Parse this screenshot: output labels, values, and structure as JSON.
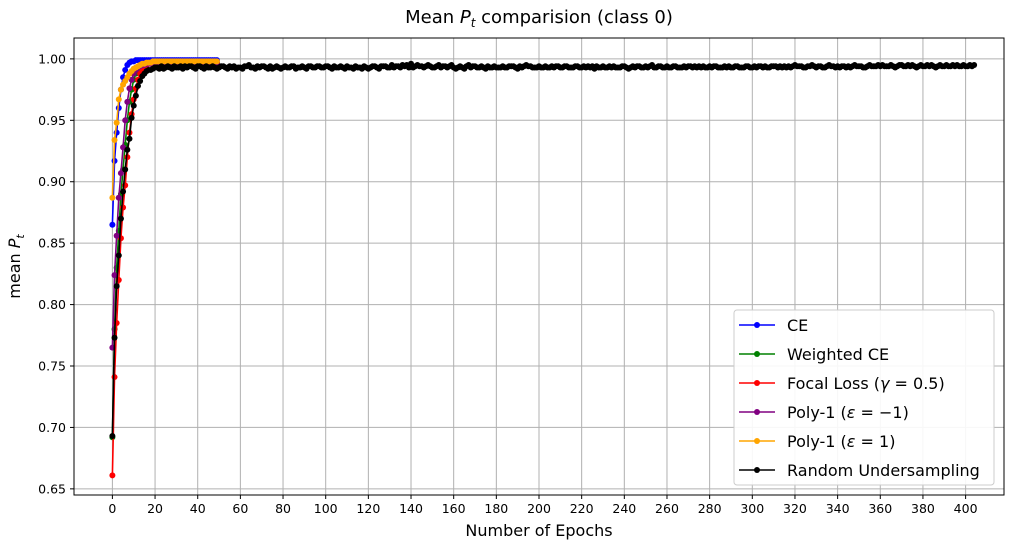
{
  "chart_data": {
    "type": "line",
    "title": "Mean P_t comparision (class 0)",
    "title_parts": {
      "prefix": "Mean ",
      "var": "P",
      "sub": "t",
      "suffix": " comparision (class 0)"
    },
    "xlabel": "Number of Epochs",
    "ylabel": "mean P_t",
    "ylabel_parts": {
      "prefix": "mean ",
      "var": "P",
      "sub": "t"
    },
    "xlim": [
      -18,
      418
    ],
    "ylim": [
      0.645,
      1.017
    ],
    "xticks": [
      0,
      20,
      40,
      60,
      80,
      100,
      120,
      140,
      160,
      180,
      200,
      220,
      240,
      260,
      280,
      300,
      320,
      340,
      360,
      380,
      400
    ],
    "yticks": [
      0.65,
      0.7,
      0.75,
      0.8,
      0.85,
      0.9,
      0.95,
      1.0
    ],
    "ytick_labels": [
      "0.65",
      "0.70",
      "0.75",
      "0.80",
      "0.85",
      "0.90",
      "0.95",
      "1.00"
    ],
    "grid": true,
    "legend_position": "lower-right",
    "series": [
      {
        "name": "CE",
        "color": "#0000ff",
        "label_parts": [
          {
            "t": "CE"
          }
        ],
        "x": [
          0,
          1,
          2,
          3,
          4,
          5,
          6,
          7,
          8,
          9,
          10,
          11,
          12,
          13,
          14,
          15,
          16,
          17,
          18,
          19,
          20,
          21,
          22,
          23,
          24,
          25,
          26,
          27,
          28,
          29,
          30,
          31,
          32,
          33,
          34,
          35,
          36,
          37,
          38,
          39,
          40,
          41,
          42,
          43,
          44,
          45,
          46,
          47,
          48,
          49
        ],
        "values": [
          0.865,
          0.917,
          0.94,
          0.96,
          0.975,
          0.985,
          0.991,
          0.995,
          0.997,
          0.998,
          0.998,
          0.999,
          0.999,
          0.999,
          0.999,
          0.999,
          0.999,
          0.999,
          0.999,
          0.999,
          0.999,
          0.999,
          0.999,
          0.999,
          0.999,
          0.999,
          0.999,
          0.999,
          0.999,
          0.999,
          0.999,
          0.999,
          0.999,
          0.999,
          0.999,
          0.999,
          0.999,
          0.999,
          0.999,
          0.999,
          0.999,
          0.999,
          0.999,
          0.999,
          0.999,
          0.999,
          0.999,
          0.999,
          0.999,
          0.999
        ]
      },
      {
        "name": "Weighted CE",
        "color": "#008000",
        "label_parts": [
          {
            "t": "Weighted CE"
          }
        ],
        "x": [
          0,
          1,
          2,
          3,
          4,
          5,
          6,
          7,
          8,
          9,
          10,
          11,
          12,
          13,
          14,
          15,
          16,
          17,
          18,
          19,
          20,
          21,
          22,
          23,
          24,
          25,
          26,
          27,
          28,
          29,
          30,
          31,
          32,
          33,
          34,
          35,
          36,
          37,
          38,
          39,
          40,
          41,
          42,
          43,
          44,
          45,
          46,
          47,
          48,
          49
        ],
        "values": [
          0.692,
          0.78,
          0.83,
          0.86,
          0.89,
          0.91,
          0.93,
          0.95,
          0.965,
          0.975,
          0.983,
          0.988,
          0.991,
          0.993,
          0.994,
          0.995,
          0.996,
          0.996,
          0.997,
          0.997,
          0.997,
          0.997,
          0.997,
          0.997,
          0.997,
          0.997,
          0.997,
          0.997,
          0.997,
          0.997,
          0.997,
          0.997,
          0.997,
          0.997,
          0.997,
          0.997,
          0.997,
          0.997,
          0.997,
          0.997,
          0.997,
          0.997,
          0.997,
          0.997,
          0.997,
          0.997,
          0.997,
          0.997,
          0.997,
          0.997
        ]
      },
      {
        "name": "Focal Loss (γ = 0.5)",
        "color": "#ff0000",
        "label_parts": [
          {
            "t": "Focal Loss ("
          },
          {
            "t": "γ",
            "i": true
          },
          {
            "t": " = 0.5)"
          }
        ],
        "x": [
          0,
          1,
          2,
          3,
          4,
          5,
          6,
          7,
          8,
          9,
          10,
          11,
          12,
          13,
          14,
          15,
          16,
          17,
          18,
          19,
          20,
          21,
          22,
          23,
          24,
          25,
          26,
          27,
          28,
          29,
          30,
          31,
          32,
          33,
          34,
          35,
          36,
          37,
          38,
          39,
          40,
          41,
          42,
          43,
          44,
          45,
          46,
          47,
          48,
          49
        ],
        "values": [
          0.661,
          0.741,
          0.785,
          0.82,
          0.854,
          0.879,
          0.897,
          0.92,
          0.94,
          0.955,
          0.967,
          0.976,
          0.983,
          0.988,
          0.991,
          0.993,
          0.995,
          0.996,
          0.996,
          0.997,
          0.997,
          0.997,
          0.997,
          0.997,
          0.997,
          0.997,
          0.997,
          0.997,
          0.997,
          0.997,
          0.997,
          0.997,
          0.997,
          0.997,
          0.997,
          0.997,
          0.997,
          0.997,
          0.997,
          0.997,
          0.997,
          0.997,
          0.997,
          0.997,
          0.997,
          0.997,
          0.997,
          0.997,
          0.997,
          0.997
        ]
      },
      {
        "name": "Poly-1 (ε = −1)",
        "color": "#800080",
        "label_parts": [
          {
            "t": "Poly-1 ("
          },
          {
            "t": "ε",
            "i": true
          },
          {
            "t": " = −1)"
          }
        ],
        "x": [
          0,
          1,
          2,
          3,
          4,
          5,
          6,
          7,
          8,
          9,
          10,
          11,
          12,
          13,
          14,
          15,
          16,
          17,
          18,
          19,
          20,
          21,
          22,
          23,
          24,
          25,
          26,
          27,
          28,
          29,
          30,
          31,
          32,
          33,
          34,
          35,
          36,
          37,
          38,
          39,
          40,
          41,
          42,
          43,
          44,
          45,
          46,
          47,
          48,
          49
        ],
        "values": [
          0.765,
          0.824,
          0.856,
          0.887,
          0.907,
          0.928,
          0.95,
          0.965,
          0.976,
          0.983,
          0.988,
          0.991,
          0.993,
          0.994,
          0.995,
          0.995,
          0.996,
          0.996,
          0.996,
          0.996,
          0.996,
          0.996,
          0.996,
          0.996,
          0.996,
          0.996,
          0.996,
          0.996,
          0.996,
          0.996,
          0.996,
          0.996,
          0.996,
          0.996,
          0.996,
          0.996,
          0.996,
          0.996,
          0.996,
          0.996,
          0.996,
          0.996,
          0.996,
          0.996,
          0.996,
          0.996,
          0.996,
          0.996,
          0.996,
          0.996
        ]
      },
      {
        "name": "Poly-1 (ε = 1)",
        "color": "#ffa500",
        "label_parts": [
          {
            "t": "Poly-1 ("
          },
          {
            "t": "ε",
            "i": true
          },
          {
            "t": " = 1)"
          }
        ],
        "x": [
          0,
          1,
          2,
          3,
          4,
          5,
          6,
          7,
          8,
          9,
          10,
          11,
          12,
          13,
          14,
          15,
          16,
          17,
          18,
          19,
          20,
          21,
          22,
          23,
          24,
          25,
          26,
          27,
          28,
          29,
          30,
          31,
          32,
          33,
          34,
          35,
          36,
          37,
          38,
          39,
          40,
          41,
          42,
          43,
          44,
          45,
          46,
          47,
          48,
          49
        ],
        "values": [
          0.887,
          0.934,
          0.948,
          0.967,
          0.975,
          0.979,
          0.982,
          0.985,
          0.988,
          0.99,
          0.992,
          0.993,
          0.994,
          0.995,
          0.996,
          0.996,
          0.997,
          0.997,
          0.997,
          0.998,
          0.998,
          0.998,
          0.998,
          0.998,
          0.998,
          0.998,
          0.998,
          0.998,
          0.998,
          0.998,
          0.998,
          0.998,
          0.998,
          0.998,
          0.998,
          0.998,
          0.998,
          0.998,
          0.998,
          0.998,
          0.998,
          0.998,
          0.998,
          0.998,
          0.998,
          0.998,
          0.998,
          0.998,
          0.998,
          0.998
        ]
      },
      {
        "name": "Random Undersampling",
        "color": "#000000",
        "label_parts": [
          {
            "t": "Random Undersampling"
          }
        ],
        "x_start": 0,
        "x_step": 1,
        "values": [
          0.693,
          0.773,
          0.815,
          0.84,
          0.87,
          0.892,
          0.91,
          0.926,
          0.935,
          0.952,
          0.962,
          0.97,
          0.978,
          0.982,
          0.986,
          0.988,
          0.99,
          0.991,
          0.991,
          0.992,
          0.993,
          0.993,
          0.992,
          0.994,
          0.992,
          0.993,
          0.994,
          0.993,
          0.992,
          0.994,
          0.993,
          0.993,
          0.994,
          0.992,
          0.994,
          0.993,
          0.994,
          0.994,
          0.993,
          0.992,
          0.994,
          0.994,
          0.993,
          0.992,
          0.994,
          0.993,
          0.993,
          0.994,
          0.993,
          0.992,
          0.993,
          0.994,
          0.994,
          0.993,
          0.992,
          0.994,
          0.993,
          0.994,
          0.992,
          0.993,
          0.993,
          0.992,
          0.994,
          0.994,
          0.995,
          0.993,
          0.993,
          0.992,
          0.994,
          0.993,
          0.994,
          0.994,
          0.993,
          0.992,
          0.994,
          0.992,
          0.993,
          0.994,
          0.993,
          0.992,
          0.993,
          0.994,
          0.993,
          0.993,
          0.994,
          0.994,
          0.992,
          0.993,
          0.993,
          0.994,
          0.993,
          0.992,
          0.994,
          0.994,
          0.993,
          0.993,
          0.994,
          0.994,
          0.993,
          0.993,
          0.994,
          0.994,
          0.993,
          0.992,
          0.994,
          0.993,
          0.993,
          0.994,
          0.993,
          0.992,
          0.994,
          0.993,
          0.993,
          0.992,
          0.994,
          0.993,
          0.993,
          0.992,
          0.994,
          0.993,
          0.992,
          0.993,
          0.994,
          0.994,
          0.993,
          0.992,
          0.994,
          0.994,
          0.994,
          0.993,
          0.993,
          0.995,
          0.993,
          0.994,
          0.994,
          0.993,
          0.995,
          0.994,
          0.995,
          0.993,
          0.996,
          0.993,
          0.994,
          0.995,
          0.994,
          0.994,
          0.993,
          0.994,
          0.995,
          0.994,
          0.993,
          0.993,
          0.994,
          0.995,
          0.993,
          0.994,
          0.994,
          0.993,
          0.994,
          0.995,
          0.993,
          0.992,
          0.993,
          0.994,
          0.993,
          0.992,
          0.994,
          0.995,
          0.993,
          0.994,
          0.994,
          0.993,
          0.993,
          0.994,
          0.993,
          0.992,
          0.994,
          0.993,
          0.993,
          0.994,
          0.993,
          0.993,
          0.993,
          0.994,
          0.993,
          0.993,
          0.994,
          0.994,
          0.994,
          0.993,
          0.992,
          0.994,
          0.993,
          0.994,
          0.995,
          0.994,
          0.994,
          0.993,
          0.993,
          0.993,
          0.994,
          0.993,
          0.993,
          0.994,
          0.993,
          0.993,
          0.994,
          0.993,
          0.994,
          0.994,
          0.993,
          0.993,
          0.994,
          0.994,
          0.993,
          0.993,
          0.993,
          0.994,
          0.994,
          0.993,
          0.993,
          0.994,
          0.993,
          0.994,
          0.993,
          0.994,
          0.992,
          0.994,
          0.993,
          0.993,
          0.994,
          0.993,
          0.993,
          0.994,
          0.993,
          0.994,
          0.993,
          0.993,
          0.993,
          0.994,
          0.994,
          0.993,
          0.992,
          0.993,
          0.994,
          0.993,
          0.994,
          0.994,
          0.993,
          0.993,
          0.994,
          0.993,
          0.994,
          0.995,
          0.993,
          0.993,
          0.994,
          0.994,
          0.993,
          0.993,
          0.994,
          0.993,
          0.993,
          0.994,
          0.994,
          0.993,
          0.993,
          0.993,
          0.994,
          0.993,
          0.994,
          0.994,
          0.993,
          0.994,
          0.993,
          0.994,
          0.993,
          0.994,
          0.993,
          0.993,
          0.994,
          0.993,
          0.994,
          0.994,
          0.993,
          0.993,
          0.993,
          0.994,
          0.993,
          0.994,
          0.993,
          0.993,
          0.994,
          0.994,
          0.993,
          0.993,
          0.993,
          0.994,
          0.994,
          0.993,
          0.993,
          0.994,
          0.993,
          0.994,
          0.994,
          0.993,
          0.994,
          0.993,
          0.993,
          0.994,
          0.994,
          0.994,
          0.993,
          0.994,
          0.993,
          0.994,
          0.993,
          0.994,
          0.993,
          0.994,
          0.995,
          0.994,
          0.994,
          0.994,
          0.993,
          0.993,
          0.994,
          0.994,
          0.995,
          0.994,
          0.993,
          0.994,
          0.994,
          0.993,
          0.993,
          0.994,
          0.995,
          0.994,
          0.994,
          0.993,
          0.994,
          0.993,
          0.994,
          0.994,
          0.993,
          0.994,
          0.993,
          0.994,
          0.995,
          0.994,
          0.994,
          0.994,
          0.993,
          0.993,
          0.994,
          0.995,
          0.994,
          0.994,
          0.994,
          0.995,
          0.994,
          0.995,
          0.994,
          0.994,
          0.994,
          0.995,
          0.994,
          0.993,
          0.994,
          0.995,
          0.995,
          0.994,
          0.994,
          0.995,
          0.994,
          0.995,
          0.994,
          0.993,
          0.994,
          0.995,
          0.994,
          0.994,
          0.995,
          0.994,
          0.995,
          0.994,
          0.993,
          0.994,
          0.995,
          0.994,
          0.994,
          0.995,
          0.994,
          0.994,
          0.995,
          0.994,
          0.995,
          0.994,
          0.994,
          0.995,
          0.994,
          0.994,
          0.995,
          0.994,
          0.995
        ]
      }
    ]
  }
}
